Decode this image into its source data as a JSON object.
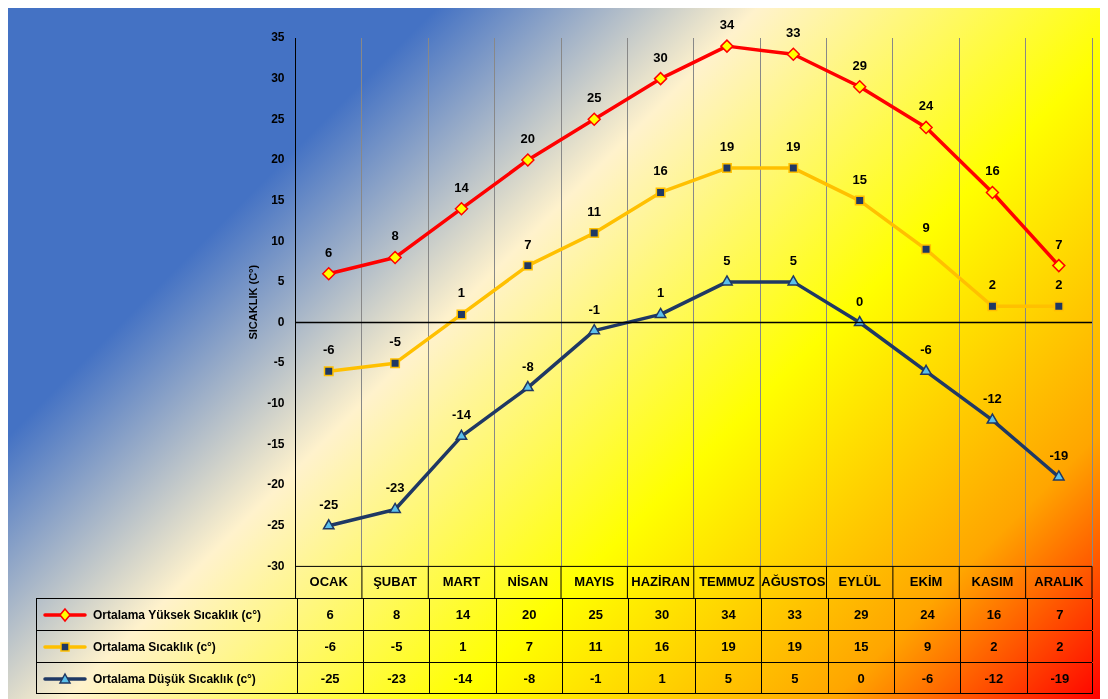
{
  "chart_data": {
    "type": "line",
    "ylabel": "SICAKLIK (C°)",
    "categories": [
      "OCAK",
      "ŞUBAT",
      "MART",
      "NİSAN",
      "MAYIS",
      "HAZİRAN",
      "TEMMUZ",
      "AĞUSTOS",
      "EYLÜL",
      "EKİM",
      "KASIM",
      "ARALIK"
    ],
    "series": [
      {
        "name": "Ortalama Yüksek Sıcaklık (c°)",
        "color": "#ff0000",
        "marker": "diamond",
        "values": [
          6,
          8,
          14,
          20,
          25,
          30,
          34,
          33,
          29,
          24,
          16,
          7
        ]
      },
      {
        "name": "Ortalama Sıcaklık (c°)",
        "color": "#ffc000",
        "marker": "square",
        "values": [
          -6,
          -5,
          1,
          7,
          11,
          16,
          19,
          19,
          15,
          9,
          2,
          2
        ]
      },
      {
        "name": "Ortalama Düşük Sıcaklık (c°)",
        "color": "#1f3864",
        "marker": "triangle",
        "values": [
          -25,
          -23,
          -14,
          -8,
          -1,
          1,
          5,
          5,
          0,
          -6,
          -12,
          -19
        ]
      }
    ],
    "annotations": [
      {
        "text": "6",
        "x": "OCAK",
        "y": 6
      },
      {
        "text": "8",
        "x": "ŞUBAT",
        "y": 8
      },
      {
        "text": "14",
        "x": "MART",
        "y": 14
      },
      {
        "text": "20",
        "x": "NİSAN",
        "y": 20
      },
      {
        "text": "25",
        "x": "MAYIS",
        "y": 25
      },
      {
        "text": "30",
        "x": "HAZİRAN",
        "y": 30
      },
      {
        "text": "34",
        "x": "TEMMUZ",
        "y": 34
      },
      {
        "text": "33",
        "x": "AĞUSTOS",
        "y": 33
      },
      {
        "text": "29",
        "x": "EYLÜL",
        "y": 29
      },
      {
        "text": "24",
        "x": "EKİM",
        "y": 24
      },
      {
        "text": "16",
        "x": "KASIM",
        "y": 16
      },
      {
        "text": "7",
        "x": "ARALIK",
        "y": 7
      },
      {
        "text": "-6",
        "x": "OCAK",
        "y": -6
      },
      {
        "text": "-5",
        "x": "ŞUBAT",
        "y": -5
      },
      {
        "text": "1",
        "x": "MART",
        "y": 1
      },
      {
        "text": "7",
        "x": "NİSAN",
        "y": 7
      },
      {
        "text": "11",
        "x": "MAYIS",
        "y": 11
      },
      {
        "text": "16",
        "x": "HAZİRAN",
        "y": 16
      },
      {
        "text": "19",
        "x": "TEMMUZ",
        "y": 19
      },
      {
        "text": "19",
        "x": "AĞUSTOS",
        "y": 19
      },
      {
        "text": "15",
        "x": "EYLÜL",
        "y": 15
      },
      {
        "text": "9",
        "x": "EKİM",
        "y": 9
      },
      {
        "text": "2",
        "x": "KASIM",
        "y": 2
      },
      {
        "text": "2",
        "x": "ARALIK",
        "y": 2
      },
      {
        "text": "-25",
        "x": "OCAK",
        "y": -25
      },
      {
        "text": "-23",
        "x": "ŞUBAT",
        "y": -23
      },
      {
        "text": "-14",
        "x": "MART",
        "y": -14
      },
      {
        "text": "-8",
        "x": "NİSAN",
        "y": -8
      },
      {
        "text": "-1",
        "x": "MAYIS",
        "y": -1
      },
      {
        "text": "1",
        "x": "HAZİRAN",
        "y": 1
      },
      {
        "text": "5",
        "x": "TEMMUZ",
        "y": 5
      },
      {
        "text": "5",
        "x": "AĞUSTOS",
        "y": 5
      },
      {
        "text": "0",
        "x": "EYLÜL",
        "y": 0
      },
      {
        "text": "-6",
        "x": "EKİM",
        "y": -6
      },
      {
        "text": "-12",
        "x": "KASIM",
        "y": -12
      },
      {
        "text": "-19",
        "x": "ARALIK",
        "y": -19
      }
    ],
    "ylim": [
      -30,
      35
    ],
    "yticks": [
      -30,
      -25,
      -20,
      -15,
      -10,
      -5,
      0,
      5,
      10,
      15,
      20,
      25,
      30,
      35
    ],
    "grid": "x",
    "legend": "bottom",
    "data_labels": true,
    "ref_lines": [
      {
        "axis": "y",
        "value": 0,
        "color": "#000000"
      }
    ]
  }
}
